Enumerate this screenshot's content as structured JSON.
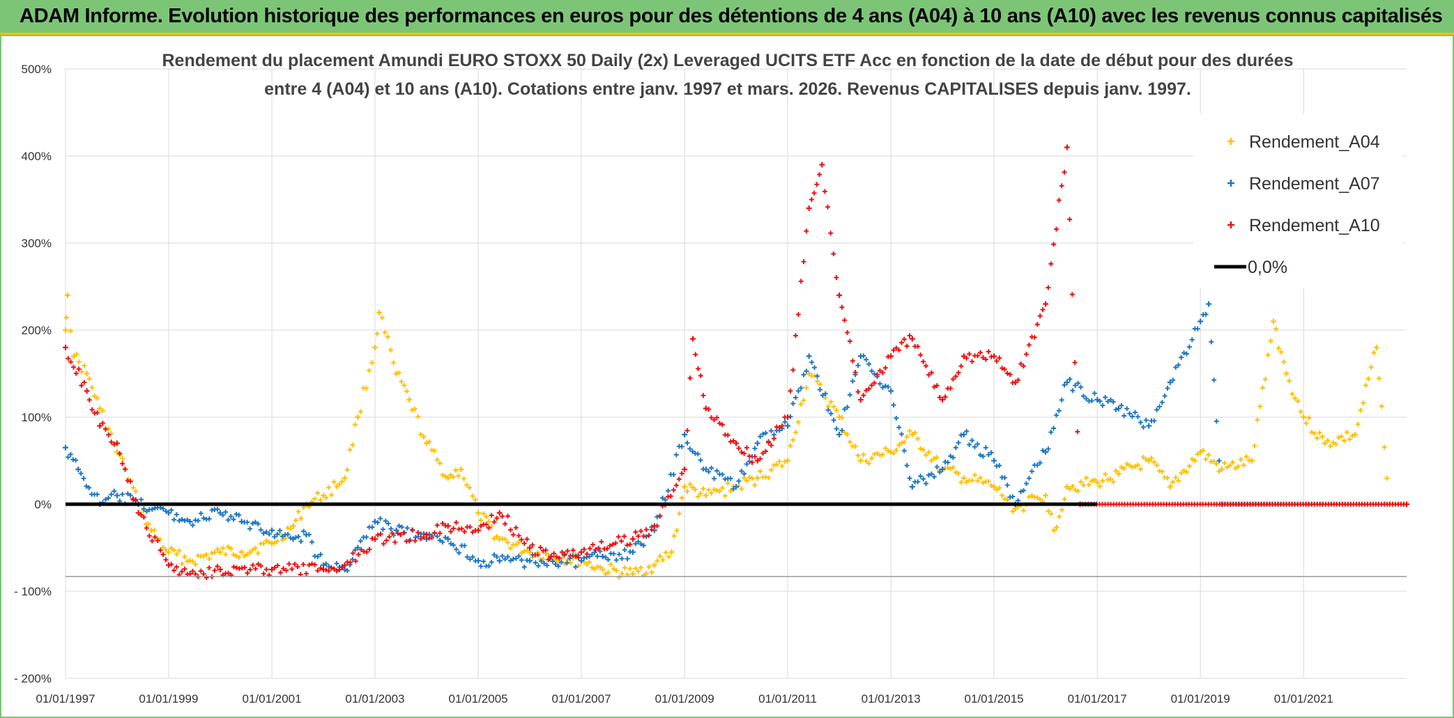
{
  "banner": {
    "title": "ADAM Informe. Evolution historique des performances en euros pour des détentions de 4 ans (A04) à 10 ans (A10) avec les revenus connus capitalisés"
  },
  "chart_data": {
    "type": "scatter",
    "title_line1": "Rendement du placement Amundi EURO STOXX 50 Daily (2x) Leveraged UCITS ETF Acc en fonction de la date de début pour des durées",
    "title_line2": "entre 4 (A04) et 10 ans (A10). Cotations entre janv. 1997 et mars. 2026. Revenus CAPITALISES depuis janv. 1997.",
    "xlabel": "",
    "ylabel": "",
    "xlim": [
      "1997-01-01",
      "2022-12-31"
    ],
    "ylim": [
      -200,
      500
    ],
    "x_ticks": [
      "01/01/1997",
      "01/01/1999",
      "01/01/2001",
      "01/01/2003",
      "01/01/2005",
      "01/01/2007",
      "01/01/2009",
      "01/01/2011",
      "01/01/2013",
      "01/01/2015",
      "01/01/2017",
      "01/01/2019",
      "01/01/2021"
    ],
    "y_ticks": [
      "500%",
      "400%",
      "300%",
      "200%",
      "100%",
      "0%",
      "- 100%",
      "- 200%"
    ],
    "grid": true,
    "legend_position": "top-right",
    "series": [
      {
        "name": "Rendement_A04",
        "color": "#ffc000",
        "marker": "+",
        "points": [
          [
            "1997-01-01",
            200
          ],
          [
            "1997-01-15",
            240
          ],
          [
            "1997-03-01",
            170
          ],
          [
            "1997-06-01",
            150
          ],
          [
            "1997-09-01",
            110
          ],
          [
            "1998-01-01",
            60
          ],
          [
            "1998-03-01",
            40
          ],
          [
            "1998-06-01",
            0
          ],
          [
            "1998-09-01",
            -30
          ],
          [
            "1999-01-01",
            -55
          ],
          [
            "1999-06-01",
            -65
          ],
          [
            "2000-01-01",
            -55
          ],
          [
            "2000-06-01",
            -55
          ],
          [
            "2001-01-01",
            -45
          ],
          [
            "2001-06-01",
            -25
          ],
          [
            "2001-09-01",
            0
          ],
          [
            "2002-01-01",
            10
          ],
          [
            "2002-06-01",
            30
          ],
          [
            "2002-09-01",
            100
          ],
          [
            "2003-01-01",
            180
          ],
          [
            "2003-02-01",
            220
          ],
          [
            "2003-06-01",
            150
          ],
          [
            "2003-09-01",
            120
          ],
          [
            "2004-01-01",
            70
          ],
          [
            "2004-06-01",
            30
          ],
          [
            "2004-09-01",
            40
          ],
          [
            "2005-01-01",
            -10
          ],
          [
            "2005-06-01",
            -40
          ],
          [
            "2006-01-01",
            -55
          ],
          [
            "2006-06-01",
            -60
          ],
          [
            "2007-01-01",
            -65
          ],
          [
            "2007-06-01",
            -75
          ],
          [
            "2008-01-01",
            -80
          ],
          [
            "2008-06-01",
            -70
          ],
          [
            "2008-10-01",
            -55
          ],
          [
            "2009-01-01",
            20
          ],
          [
            "2009-06-01",
            10
          ],
          [
            "2010-01-01",
            20
          ],
          [
            "2010-06-01",
            30
          ],
          [
            "2011-01-01",
            50
          ],
          [
            "2011-06-01",
            150
          ],
          [
            "2012-01-01",
            100
          ],
          [
            "2012-06-01",
            50
          ],
          [
            "2013-01-01",
            60
          ],
          [
            "2013-06-01",
            80
          ],
          [
            "2014-01-01",
            40
          ],
          [
            "2014-06-01",
            30
          ],
          [
            "2015-01-01",
            20
          ],
          [
            "2015-06-01",
            -5
          ],
          [
            "2016-01-01",
            10
          ],
          [
            "2016-03-01",
            -30
          ],
          [
            "2016-06-01",
            20
          ],
          [
            "2017-01-01",
            25
          ],
          [
            "2017-06-01",
            35
          ],
          [
            "2018-01-01",
            50
          ],
          [
            "2018-06-01",
            20
          ],
          [
            "2019-01-01",
            60
          ],
          [
            "2019-06-01",
            40
          ],
          [
            "2020-01-01",
            50
          ],
          [
            "2020-06-01",
            210
          ],
          [
            "2020-09-01",
            150
          ],
          [
            "2021-01-01",
            100
          ],
          [
            "2021-06-01",
            70
          ],
          [
            "2022-01-01",
            80
          ],
          [
            "2022-06-01",
            180
          ],
          [
            "2022-09-01",
            0
          ],
          [
            "2022-12-31",
            0
          ]
        ]
      },
      {
        "name": "Rendement_A07",
        "color": "#1f77c4",
        "marker": "+",
        "points": [
          [
            "1997-01-01",
            65
          ],
          [
            "1997-04-01",
            40
          ],
          [
            "1997-09-01",
            0
          ],
          [
            "1998-01-01",
            10
          ],
          [
            "1998-06-01",
            0
          ],
          [
            "1999-01-01",
            -10
          ],
          [
            "1999-06-01",
            -20
          ],
          [
            "2000-01-01",
            -10
          ],
          [
            "2000-06-01",
            -20
          ],
          [
            "2001-01-01",
            -30
          ],
          [
            "2001-06-01",
            -40
          ],
          [
            "2001-09-01",
            -35
          ],
          [
            "2002-01-01",
            -70
          ],
          [
            "2002-06-01",
            -75
          ],
          [
            "2002-09-01",
            -50
          ],
          [
            "2003-01-01",
            -20
          ],
          [
            "2003-06-01",
            -30
          ],
          [
            "2004-01-01",
            -40
          ],
          [
            "2004-06-01",
            -40
          ],
          [
            "2005-01-01",
            -65
          ],
          [
            "2005-06-01",
            -65
          ],
          [
            "2006-01-01",
            -65
          ],
          [
            "2007-01-01",
            -65
          ],
          [
            "2007-06-01",
            -60
          ],
          [
            "2008-01-01",
            -55
          ],
          [
            "2008-06-01",
            -30
          ],
          [
            "2009-01-01",
            80
          ],
          [
            "2009-06-01",
            40
          ],
          [
            "2010-01-01",
            20
          ],
          [
            "2010-06-01",
            70
          ],
          [
            "2011-01-01",
            90
          ],
          [
            "2011-06-01",
            170
          ],
          [
            "2012-01-01",
            80
          ],
          [
            "2012-06-01",
            170
          ],
          [
            "2013-01-01",
            130
          ],
          [
            "2013-06-01",
            20
          ],
          [
            "2014-01-01",
            40
          ],
          [
            "2014-06-01",
            80
          ],
          [
            "2015-01-01",
            50
          ],
          [
            "2015-06-01",
            0
          ],
          [
            "2016-01-01",
            60
          ],
          [
            "2016-06-01",
            140
          ],
          [
            "2017-01-01",
            120
          ],
          [
            "2017-06-01",
            110
          ],
          [
            "2018-01-01",
            90
          ],
          [
            "2018-06-01",
            140
          ],
          [
            "2019-01-01",
            210
          ],
          [
            "2019-03-01",
            230
          ],
          [
            "2019-06-01",
            0
          ],
          [
            "2022-12-31",
            0
          ]
        ]
      },
      {
        "name": "Rendement_A10",
        "color": "#ee1111",
        "marker": "+",
        "points": [
          [
            "1997-01-01",
            180
          ],
          [
            "1997-06-01",
            130
          ],
          [
            "1997-09-01",
            90
          ],
          [
            "1998-01-01",
            70
          ],
          [
            "1998-06-01",
            -10
          ],
          [
            "1999-01-01",
            -70
          ],
          [
            "1999-06-01",
            -80
          ],
          [
            "2000-01-01",
            -75
          ],
          [
            "2001-01-01",
            -75
          ],
          [
            "2002-01-01",
            -75
          ],
          [
            "2002-06-01",
            -70
          ],
          [
            "2003-01-01",
            -40
          ],
          [
            "2004-01-01",
            -35
          ],
          [
            "2004-06-01",
            -25
          ],
          [
            "2005-01-01",
            -30
          ],
          [
            "2005-06-01",
            -10
          ],
          [
            "2006-01-01",
            -50
          ],
          [
            "2006-06-01",
            -60
          ],
          [
            "2007-01-01",
            -55
          ],
          [
            "2008-01-01",
            -40
          ],
          [
            "2008-06-01",
            -25
          ],
          [
            "2009-01-01",
            40
          ],
          [
            "2009-03-01",
            190
          ],
          [
            "2009-06-01",
            110
          ],
          [
            "2010-01-01",
            70
          ],
          [
            "2010-06-01",
            50
          ],
          [
            "2011-01-01",
            100
          ],
          [
            "2011-06-01",
            340
          ],
          [
            "2011-09-01",
            390
          ],
          [
            "2012-01-01",
            240
          ],
          [
            "2012-06-01",
            120
          ],
          [
            "2013-01-01",
            170
          ],
          [
            "2013-06-01",
            190
          ],
          [
            "2014-01-01",
            120
          ],
          [
            "2014-06-01",
            170
          ],
          [
            "2015-01-01",
            170
          ],
          [
            "2015-06-01",
            140
          ],
          [
            "2016-01-01",
            230
          ],
          [
            "2016-06-01",
            410
          ],
          [
            "2016-09-01",
            0
          ],
          [
            "2022-12-31",
            0
          ]
        ]
      },
      {
        "name": "0,0%",
        "color": "#000000",
        "marker": "line",
        "points": [
          [
            "1997-01-01",
            0
          ],
          [
            "2016-12-31",
            0
          ]
        ]
      }
    ]
  }
}
